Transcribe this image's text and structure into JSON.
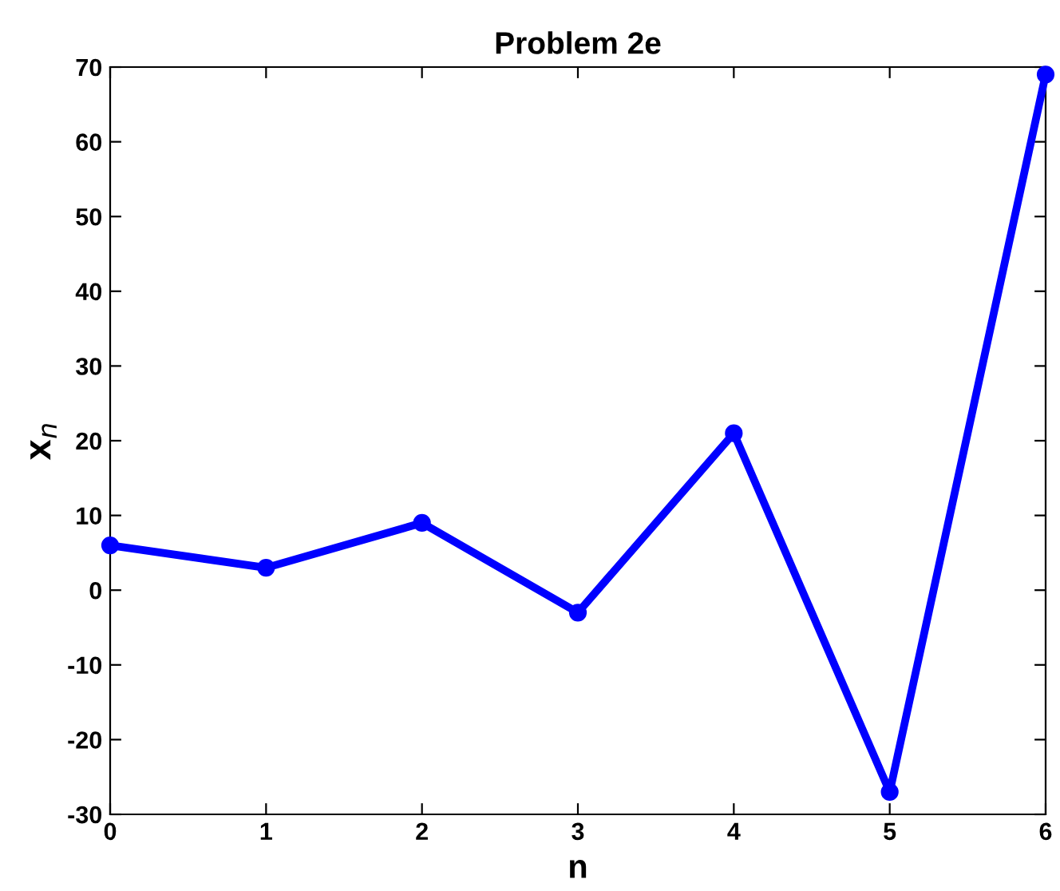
{
  "chart_data": {
    "type": "line",
    "title": "Problem 2e",
    "xlabel": "n",
    "ylabel": "x$_{n}$",
    "x": [
      0,
      1,
      2,
      3,
      4,
      5,
      6
    ],
    "series": [
      {
        "color": "#0000ff",
        "values": [
          6,
          3,
          9,
          -3,
          21,
          -27,
          69
        ]
      }
    ],
    "xlim": [
      0,
      6
    ],
    "xticks": [
      0,
      1,
      2,
      3,
      4,
      5,
      6
    ],
    "ylim": [
      -30,
      70
    ],
    "yticks": [
      -30,
      -20,
      -10,
      0,
      10,
      20,
      30,
      40,
      50,
      60,
      70
    ],
    "grid": false,
    "marker": "circle",
    "line_style": "solid"
  }
}
